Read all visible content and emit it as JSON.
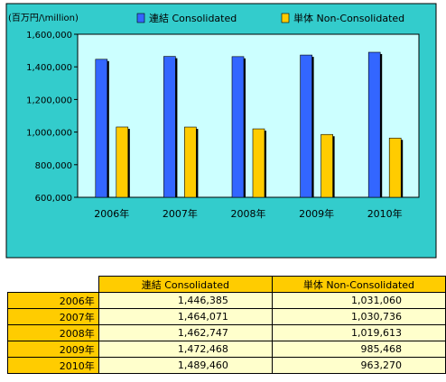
{
  "chart_data": {
    "type": "bar",
    "unit_label": "(百万円/\\million)",
    "categories": [
      "2006年",
      "2007年",
      "2008年",
      "2009年",
      "2010年"
    ],
    "series": [
      {
        "name": "連結 Consolidated",
        "color": "#3366ff",
        "values": [
          1446385,
          1464071,
          1462747,
          1472468,
          1489460
        ]
      },
      {
        "name": "単体 Non-Consolidated",
        "color": "#ffcc00",
        "values": [
          1031060,
          1030736,
          1019613,
          985468,
          963270
        ]
      }
    ],
    "ylim": [
      600000,
      1600000
    ],
    "yticks": [
      600000,
      800000,
      1000000,
      1200000,
      1400000,
      1600000
    ],
    "ytick_labels": [
      "600,000",
      "800,000",
      "1,000,000",
      "1,200,000",
      "1,400,000",
      "1,600,000"
    ],
    "grid": false,
    "legend_position": "top",
    "colors": {
      "outer_background": "#33cccc",
      "plot_background": "#ccffff"
    }
  },
  "table": {
    "headers": [
      "連結 Consolidated",
      "単体 Non-Consolidated"
    ],
    "rows": [
      {
        "year": "2006年",
        "consolidated": "1,446,385",
        "non_consolidated": "1,031,060"
      },
      {
        "year": "2007年",
        "consolidated": "1,464,071",
        "non_consolidated": "1,030,736"
      },
      {
        "year": "2008年",
        "consolidated": "1,462,747",
        "non_consolidated": "1,019,613"
      },
      {
        "year": "2009年",
        "consolidated": "1,472,468",
        "non_consolidated": "985,468"
      },
      {
        "year": "2010年",
        "consolidated": "1,489,460",
        "non_consolidated": "963,270"
      }
    ]
  }
}
